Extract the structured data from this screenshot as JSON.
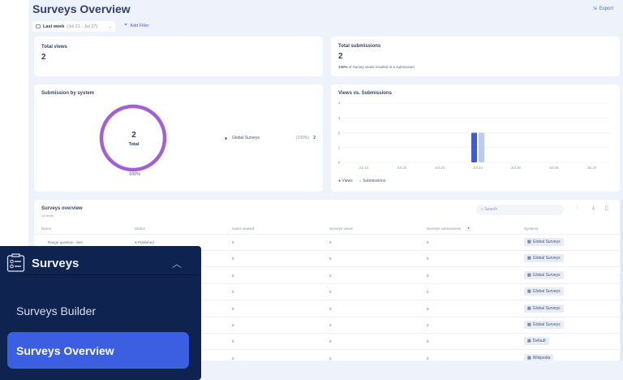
{
  "header": {
    "title": "Surveys Overview",
    "export_label": "Export"
  },
  "filters": {
    "date_label": "Last week",
    "date_range": "(Jul 21 - Jul 27)",
    "add_filter": "Add Filter"
  },
  "total_views": {
    "label": "Total views",
    "value": "2"
  },
  "total_submissions": {
    "label": "Total submissions",
    "value": "2",
    "note_bold": "100%",
    "note": "of Survey views resulted in a submission"
  },
  "submission_by_system": {
    "title": "Submission by system",
    "total": "2",
    "total_label": "Total",
    "percent": "100%",
    "legend": [
      {
        "name": "Global Surveys",
        "pct": "(100%)",
        "value": "2",
        "color": "#a25fd8"
      }
    ]
  },
  "chart_data": {
    "type": "bar",
    "title": "Views vs. Submissions",
    "categories": [
      "Jul 21",
      "Jul 22",
      "Jul 23",
      "Jul 24",
      "Jul 25",
      "Jul 26",
      "Jul 27"
    ],
    "series": [
      {
        "name": "Views",
        "values": [
          0,
          0,
          0,
          2,
          0,
          0,
          0
        ],
        "color": "#3a5be0"
      },
      {
        "name": "Submissions",
        "values": [
          0,
          0,
          0,
          2,
          0,
          0,
          0
        ],
        "color": "#bccaf0"
      }
    ],
    "ylim": [
      0,
      4
    ],
    "yticks": [
      "0",
      "1",
      "2",
      "3",
      "4"
    ],
    "grid": true,
    "legend": "bottom-left"
  },
  "table": {
    "title": "Surveys overview",
    "count": "14 items",
    "search_placeholder": "Search",
    "columns": [
      "Name",
      "Status",
      "Users viewed",
      "Surveys views",
      "Surveys submissions",
      "Systems"
    ],
    "rows": [
      {
        "name": "Range question - ben",
        "status": "Published",
        "users": "0",
        "views": "0",
        "subs": "0",
        "system": "Global Surveys"
      },
      {
        "users": "0",
        "views": "0",
        "subs": "0",
        "system": "Global Surveys"
      },
      {
        "users": "0",
        "views": "0",
        "subs": "0",
        "system": "Global Surveys"
      },
      {
        "users": "0",
        "views": "0",
        "subs": "0",
        "system": "Global Surveys"
      },
      {
        "users": "0",
        "views": "0",
        "subs": "0",
        "system": "Global Surveys"
      },
      {
        "users": "0",
        "views": "0",
        "subs": "0",
        "system": "Global Surveys"
      },
      {
        "users": "0",
        "views": "0",
        "subs": "0",
        "system": "Default"
      },
      {
        "users": "0",
        "views": "0",
        "subs": "0",
        "system": "Wikipedia"
      }
    ]
  },
  "sidebar": {
    "section": "Surveys",
    "items": [
      {
        "label": "Surveys Builder"
      },
      {
        "label": "Surveys Overview",
        "active": true
      }
    ]
  }
}
